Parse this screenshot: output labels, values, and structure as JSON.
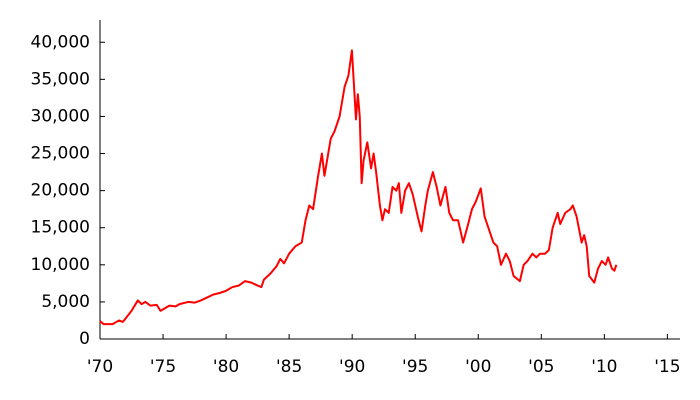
{
  "chart_data": {
    "type": "line",
    "color": "#ff0000",
    "grid": false,
    "xlim": [
      1970,
      2016
    ],
    "ylim": [
      0,
      43000
    ],
    "xticks": [
      {
        "value": 1970,
        "label": "'70"
      },
      {
        "value": 1975,
        "label": "'75"
      },
      {
        "value": 1980,
        "label": "'80"
      },
      {
        "value": 1985,
        "label": "'85"
      },
      {
        "value": 1990,
        "label": "'90"
      },
      {
        "value": 1995,
        "label": "'95"
      },
      {
        "value": 2000,
        "label": "'00"
      },
      {
        "value": 2005,
        "label": "'05"
      },
      {
        "value": 2010,
        "label": "'10"
      },
      {
        "value": 2015,
        "label": "'15"
      }
    ],
    "yticks": [
      0,
      {
        "value": 5000,
        "label": "5,000"
      },
      {
        "value": 10000,
        "label": "10,000"
      },
      {
        "value": 15000,
        "label": "15,000"
      },
      {
        "value": 20000,
        "label": "20,000"
      },
      {
        "value": 25000,
        "label": "25,000"
      },
      {
        "value": 30000,
        "label": "30,000"
      },
      {
        "value": 35000,
        "label": "35,000"
      },
      {
        "value": 40000,
        "label": "40,000"
      }
    ],
    "x": [
      1970,
      1970.3,
      1970.6,
      1971,
      1971.5,
      1971.8,
      1972,
      1972.5,
      1973,
      1973.3,
      1973.6,
      1974,
      1974.5,
      1974.8,
      1975,
      1975.5,
      1976,
      1976.3,
      1977,
      1977.5,
      1978,
      1978.5,
      1979,
      1979.5,
      1980,
      1980.5,
      1981,
      1981.5,
      1982,
      1982.5,
      1982.8,
      1983,
      1983.5,
      1984,
      1984.3,
      1984.6,
      1985,
      1985.5,
      1986,
      1986.3,
      1986.6,
      1986.9,
      1987.3,
      1987.6,
      1987.8,
      1988,
      1988.3,
      1988.6,
      1989,
      1989.4,
      1989.7,
      1989.98,
      1990.3,
      1990.45,
      1990.6,
      1990.75,
      1990.9,
      1991.2,
      1991.5,
      1991.7,
      1991.9,
      1992.2,
      1992.4,
      1992.6,
      1992.9,
      1993.2,
      1993.5,
      1993.7,
      1993.9,
      1994.2,
      1994.5,
      1994.8,
      1995.2,
      1995.5,
      1995.8,
      1996,
      1996.4,
      1996.7,
      1997,
      1997.4,
      1997.7,
      1998,
      1998.4,
      1998.8,
      1999.2,
      1999.5,
      1999.8,
      2000.2,
      2000.5,
      2000.8,
      2001.2,
      2001.5,
      2001.8,
      2002.2,
      2002.5,
      2002.8,
      2003.3,
      2003.6,
      2003.9,
      2004.3,
      2004.6,
      2004.9,
      2005.3,
      2005.6,
      2005.9,
      2006.3,
      2006.5,
      2006.9,
      2007.3,
      2007.5,
      2007.8,
      2008.2,
      2008.4,
      2008.6,
      2008.8,
      2009.2,
      2009.5,
      2009.8,
      2010.1,
      2010.3,
      2010.6,
      2010.8,
      2010.95
    ],
    "values": [
      2400,
      2000,
      2000,
      2000,
      2500,
      2300,
      2700,
      3800,
      5200,
      4700,
      5000,
      4500,
      4600,
      3800,
      4000,
      4500,
      4400,
      4700,
      5000,
      4900,
      5200,
      5600,
      6000,
      6200,
      6500,
      7000,
      7200,
      7800,
      7600,
      7200,
      7000,
      8000,
      8800,
      9800,
      10800,
      10200,
      11500,
      12500,
      13000,
      16000,
      18000,
      17500,
      22000,
      25000,
      22000,
      24000,
      27000,
      28000,
      30000,
      34000,
      35500,
      38900,
      29600,
      33000,
      30000,
      21000,
      24000,
      26500,
      23000,
      25000,
      22500,
      18000,
      16000,
      17500,
      17000,
      20500,
      20000,
      21000,
      17000,
      20000,
      21000,
      19500,
      16500,
      14500,
      18000,
      20000,
      22500,
      20500,
      18000,
      20500,
      17000,
      16000,
      16000,
      13000,
      15500,
      17500,
      18500,
      20300,
      16500,
      15000,
      13000,
      12500,
      10000,
      11500,
      10500,
      8500,
      7800,
      10000,
      10500,
      11500,
      11000,
      11500,
      11500,
      12000,
      15000,
      17000,
      15500,
      17000,
      17500,
      18000,
      16500,
      13000,
      14000,
      12500,
      8500,
      7600,
      9500,
      10500,
      10000,
      11000,
      9500,
      9200,
      10000
    ]
  }
}
